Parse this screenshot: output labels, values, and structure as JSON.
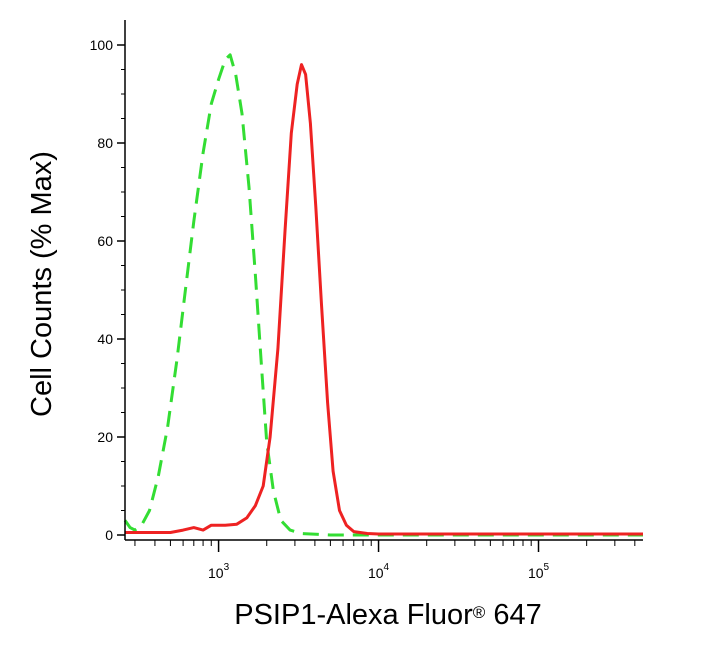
{
  "chart_data": {
    "type": "line",
    "title": "",
    "xlabel": "PSIP1-Alexa Fluor",
    "xlabel_mark": "®",
    "xlabel_suffix": " 647",
    "ylabel": "Cell Counts (% Max)",
    "xscale": "log",
    "xlim": [
      260,
      450000
    ],
    "ylim": [
      0,
      100
    ],
    "yticks": [
      0,
      20,
      40,
      60,
      80,
      100
    ],
    "yticklabels": [
      "0",
      "20",
      "40",
      "60",
      "80",
      "100"
    ],
    "xticks": [
      {
        "value": 1000,
        "base": "10",
        "exp": "3"
      },
      {
        "value": 10000,
        "base": "10",
        "exp": "4"
      },
      {
        "value": 100000,
        "base": "10",
        "exp": "5"
      }
    ],
    "grid": false,
    "legend": "none",
    "series": [
      {
        "color": "#33dd33",
        "style": "dashed",
        "points": [
          [
            260,
            3
          ],
          [
            280,
            1.5
          ],
          [
            300,
            1
          ],
          [
            330,
            2
          ],
          [
            370,
            5
          ],
          [
            420,
            12
          ],
          [
            480,
            22
          ],
          [
            550,
            36
          ],
          [
            620,
            50
          ],
          [
            700,
            64
          ],
          [
            800,
            78
          ],
          [
            900,
            88
          ],
          [
            1000,
            93
          ],
          [
            1100,
            97
          ],
          [
            1180,
            98
          ],
          [
            1280,
            94
          ],
          [
            1400,
            86
          ],
          [
            1550,
            71
          ],
          [
            1700,
            53
          ],
          [
            1850,
            35
          ],
          [
            2000,
            19
          ],
          [
            2200,
            9
          ],
          [
            2450,
            3
          ],
          [
            2800,
            1
          ],
          [
            3300,
            0.3
          ],
          [
            5000,
            0
          ],
          [
            20000,
            0
          ],
          [
            450000,
            0
          ]
        ]
      },
      {
        "color": "#ee2222",
        "style": "solid",
        "points": [
          [
            260,
            0.5
          ],
          [
            500,
            0.5
          ],
          [
            600,
            1
          ],
          [
            700,
            1.5
          ],
          [
            800,
            1
          ],
          [
            900,
            2
          ],
          [
            1100,
            2
          ],
          [
            1300,
            2.2
          ],
          [
            1500,
            3.5
          ],
          [
            1700,
            6
          ],
          [
            1900,
            10
          ],
          [
            2100,
            20
          ],
          [
            2350,
            38
          ],
          [
            2600,
            62
          ],
          [
            2850,
            82
          ],
          [
            3100,
            92
          ],
          [
            3300,
            96
          ],
          [
            3500,
            94
          ],
          [
            3750,
            84
          ],
          [
            4050,
            67
          ],
          [
            4400,
            47
          ],
          [
            4800,
            27
          ],
          [
            5200,
            13
          ],
          [
            5700,
            5
          ],
          [
            6300,
            2
          ],
          [
            7000,
            0.7
          ],
          [
            8500,
            0.3
          ],
          [
            10000,
            0.2
          ],
          [
            30000,
            0.2
          ],
          [
            450000,
            0.2
          ]
        ]
      }
    ]
  }
}
